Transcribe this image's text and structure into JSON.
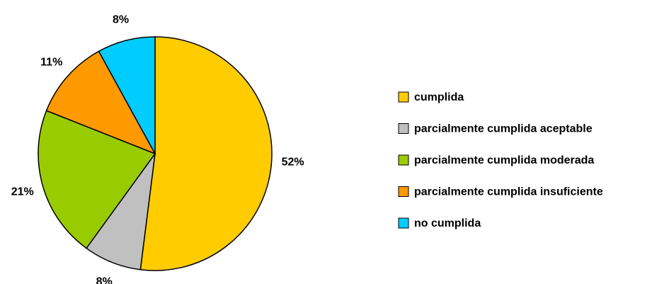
{
  "chart_data": {
    "type": "pie",
    "categories": [
      "cumplida",
      "parcialmente cumplida aceptable",
      "parcialmente cumplida moderada",
      "parcialmente cumplida insuficiente",
      "no cumplida"
    ],
    "values": [
      52,
      8,
      21,
      11,
      8
    ],
    "value_labels": [
      "52%",
      "8%",
      "21%",
      "11%",
      "8%"
    ],
    "colors": [
      "#ffcc00",
      "#c0c0c0",
      "#99cc00",
      "#ff9900",
      "#00ccff"
    ],
    "legend": "right"
  }
}
